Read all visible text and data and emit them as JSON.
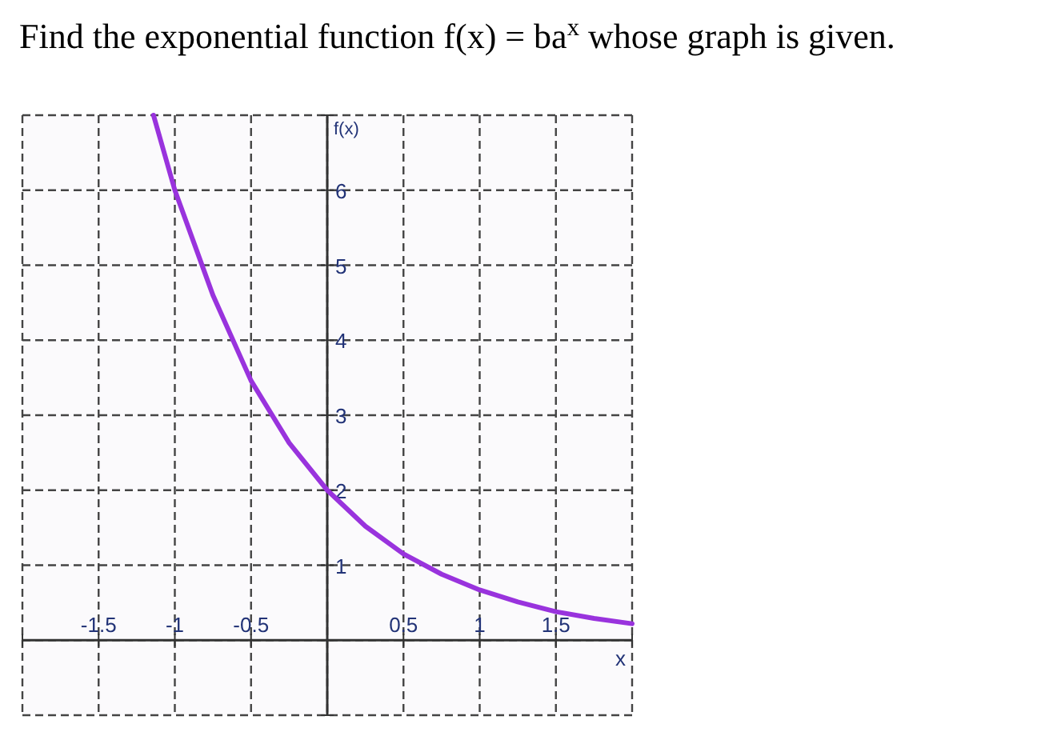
{
  "chart_data": {
    "type": "line",
    "title": "Find the exponential function f(x) = ba$^{x}$ whose graph is given.",
    "xlabel": "x",
    "ylabel": "f(x)",
    "x": [
      -1.14,
      -1,
      -0.75,
      -0.5,
      -0.25,
      0,
      0.25,
      0.5,
      0.75,
      1,
      1.25,
      1.5,
      1.75,
      2
    ],
    "series": [
      {
        "color": "#9933dd",
        "values": [
          7,
          6,
          4.6,
          3.46,
          2.63,
          2,
          1.52,
          1.15,
          0.88,
          0.67,
          0.51,
          0.38,
          0.29,
          0.22
        ]
      }
    ],
    "xlim": [
      -2,
      2
    ],
    "ylim": [
      -1,
      7
    ],
    "xticks": [
      {
        "value": -2,
        "label": null
      },
      -1.5,
      -1,
      -0.5,
      {
        "value": 0,
        "label": null
      },
      0.5,
      1,
      1.5,
      {
        "value": 2,
        "label": null
      }
    ],
    "yticks": [
      {
        "value": -1,
        "label": null
      },
      {
        "value": 0,
        "label": null
      },
      1,
      2,
      3,
      4,
      5,
      6,
      {
        "value": 7,
        "label": null
      }
    ],
    "grid": true,
    "marker": "none",
    "line_style": "solid"
  }
}
